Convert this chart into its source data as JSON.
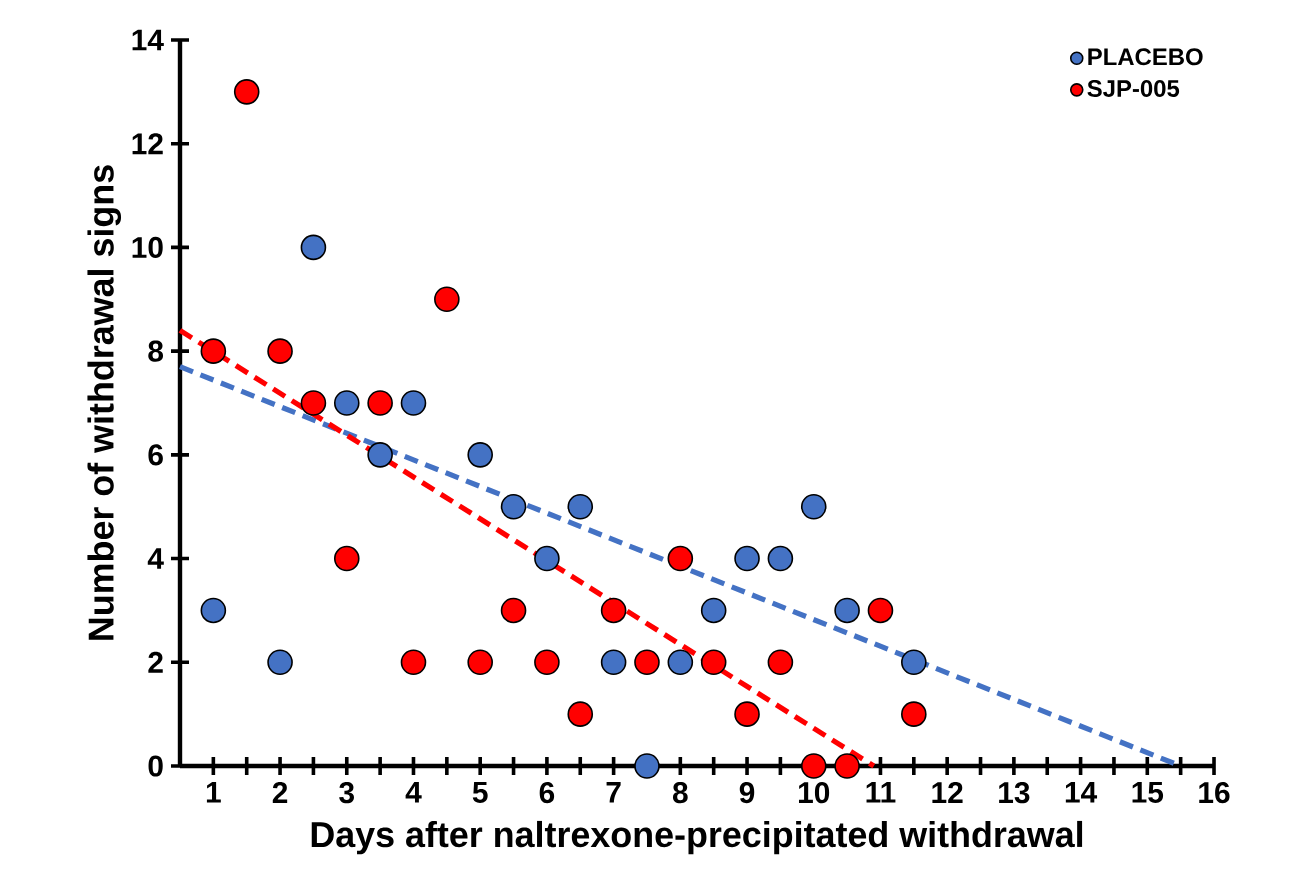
{
  "chart_data": {
    "type": "scatter",
    "xlabel": "Days after naltrexone-precipitated withdrawal",
    "ylabel": "Number of withdrawal signs",
    "xlim": [
      0.5,
      16
    ],
    "ylim": [
      0,
      14
    ],
    "xticks": [
      1,
      {
        "value": 1.5,
        "label": null
      },
      2,
      {
        "value": 2.5,
        "label": null
      },
      3,
      {
        "value": 3.5,
        "label": null
      },
      4,
      {
        "value": 4.5,
        "label": null
      },
      5,
      {
        "value": 5.5,
        "label": null
      },
      6,
      {
        "value": 6.5,
        "label": null
      },
      7,
      {
        "value": 7.5,
        "label": null
      },
      8,
      {
        "value": 8.5,
        "label": null
      },
      9,
      {
        "value": 9.5,
        "label": null
      },
      10,
      {
        "value": 10.5,
        "label": null
      },
      11,
      {
        "value": 11.5,
        "label": null
      },
      12,
      {
        "value": 12.5,
        "label": null
      },
      13,
      {
        "value": 13.5,
        "label": null
      },
      14,
      {
        "value": 14.5,
        "label": null
      },
      15,
      {
        "value": 15.5,
        "label": null
      },
      16
    ],
    "yticks": [
      0,
      2,
      4,
      6,
      8,
      10,
      12,
      14
    ],
    "grid": false,
    "legend": "top right",
    "marker": "circle",
    "series": [
      {
        "name": "PLACEBO",
        "color": "#4472c4",
        "x": [
          1,
          2,
          2.5,
          3,
          3.5,
          4,
          5,
          5.5,
          6,
          6.5,
          7,
          7.5,
          8,
          8.5,
          9,
          9.5,
          10,
          10.5,
          11.5
        ],
        "values": [
          3,
          2,
          10,
          7,
          6,
          7,
          6,
          5,
          4,
          5,
          2,
          0,
          2,
          3,
          4,
          4,
          5,
          3,
          2
        ]
      },
      {
        "name": "SJP-005",
        "color": "#ff0000",
        "x": [
          1,
          1.5,
          2,
          2.5,
          3,
          3.5,
          4,
          4.5,
          5,
          5.5,
          6,
          6.5,
          7,
          7.5,
          8,
          8.5,
          9,
          9.5,
          10,
          10.5,
          11,
          11.5
        ],
        "values": [
          8,
          13,
          8,
          7,
          4,
          7,
          2,
          9,
          2,
          3,
          2,
          1,
          3,
          2,
          4,
          2,
          1,
          2,
          0,
          0,
          3,
          1
        ]
      },
      {
        "type": "line",
        "marker": "none",
        "line_style": "dashed",
        "color": "#4472c4",
        "x": [
          0.5,
          15.5
        ],
        "values": [
          7.7,
          0
        ]
      },
      {
        "type": "line",
        "marker": "none",
        "line_style": "dashed",
        "color": "#ff0000",
        "x": [
          0.5,
          10.9
        ],
        "values": [
          8.4,
          0
        ]
      }
    ]
  }
}
